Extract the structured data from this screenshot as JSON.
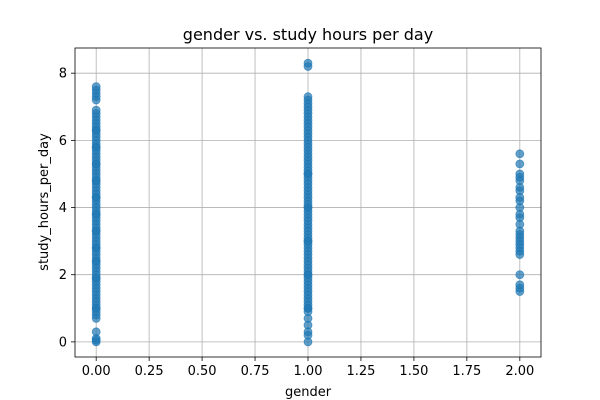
{
  "chart_data": {
    "type": "scatter",
    "title": "gender vs. study hours per day",
    "xlabel": "gender",
    "ylabel": "study_hours_per_day",
    "xlim": [
      -0.1,
      2.1
    ],
    "ylim": [
      -0.45,
      8.75
    ],
    "xticks": [
      0.0,
      0.25,
      0.5,
      0.75,
      1.0,
      1.25,
      1.5,
      1.75,
      2.0
    ],
    "xtick_labels": [
      "0.00",
      "0.25",
      "0.50",
      "0.75",
      "1.00",
      "1.25",
      "1.50",
      "1.75",
      "2.00"
    ],
    "yticks": [
      0,
      2,
      4,
      6,
      8
    ],
    "ytick_labels": [
      "0",
      "2",
      "4",
      "6",
      "8"
    ],
    "grid": true,
    "series": [
      {
        "color": "#1f77b4",
        "x": [
          0,
          0,
          0,
          0,
          0,
          0,
          0,
          0,
          0,
          0,
          0,
          0,
          0,
          0,
          0,
          0,
          0,
          0,
          0,
          0,
          0,
          0,
          0,
          0,
          0,
          0,
          0,
          0,
          0,
          0,
          0,
          0,
          0,
          0,
          0,
          0,
          0,
          0,
          0,
          0,
          0,
          0,
          0,
          0,
          0,
          0,
          0,
          0,
          0,
          0,
          0,
          0,
          0,
          0,
          0,
          0,
          0,
          0,
          0,
          0,
          0,
          0,
          0,
          0,
          0,
          0,
          0,
          0,
          0,
          0,
          0,
          0,
          0,
          0,
          0,
          0,
          0,
          0,
          0,
          0,
          0,
          0,
          0,
          1,
          1,
          1,
          1,
          1,
          1,
          1,
          1,
          1,
          1,
          1,
          1,
          1,
          1,
          1,
          1,
          1,
          1,
          1,
          1,
          1,
          1,
          1,
          1,
          1,
          1,
          1,
          1,
          1,
          1,
          1,
          1,
          1,
          1,
          1,
          1,
          1,
          1,
          1,
          1,
          1,
          1,
          1,
          1,
          1,
          1,
          1,
          1,
          1,
          1,
          1,
          1,
          1,
          1,
          1,
          1,
          1,
          1,
          1,
          1,
          1,
          1,
          1,
          1,
          1,
          1,
          1,
          1,
          1,
          1,
          1,
          1,
          1,
          1,
          1,
          1,
          1,
          2,
          2,
          2,
          2,
          2,
          2,
          2,
          2,
          2,
          2,
          2,
          2,
          2,
          2,
          2,
          2,
          2,
          2,
          2,
          2,
          2,
          2,
          2,
          2,
          2
        ],
        "y": [
          0.0,
          0.05,
          0.1,
          0.3,
          0.7,
          0.8,
          0.9,
          1.0,
          1.1,
          1.2,
          1.3,
          1.4,
          1.5,
          1.6,
          1.7,
          1.8,
          1.9,
          2.0,
          2.1,
          2.2,
          2.3,
          2.4,
          2.5,
          2.6,
          2.7,
          2.8,
          2.9,
          3.0,
          3.1,
          3.2,
          3.3,
          3.4,
          3.5,
          3.6,
          3.7,
          3.8,
          3.9,
          4.0,
          4.1,
          4.2,
          4.3,
          4.4,
          4.5,
          4.6,
          4.7,
          4.8,
          4.9,
          5.0,
          5.1,
          5.2,
          5.3,
          5.4,
          5.5,
          5.6,
          5.7,
          5.8,
          5.9,
          6.0,
          6.1,
          6.2,
          6.3,
          6.4,
          6.5,
          6.6,
          6.7,
          6.8,
          6.9,
          7.2,
          7.3,
          7.4,
          7.5,
          7.6,
          1.0,
          1.9,
          2.4,
          2.8,
          3.3,
          3.8,
          4.3,
          4.8,
          5.3,
          5.8,
          6.3,
          0.0,
          0.2,
          0.3,
          0.5,
          0.7,
          0.9,
          1.0,
          1.1,
          1.2,
          1.3,
          1.4,
          1.5,
          1.6,
          1.7,
          1.8,
          1.9,
          2.0,
          2.1,
          2.2,
          2.3,
          2.4,
          2.5,
          2.6,
          2.7,
          2.8,
          2.9,
          3.0,
          3.1,
          3.2,
          3.3,
          3.4,
          3.5,
          3.6,
          3.7,
          3.8,
          3.9,
          4.0,
          4.1,
          4.2,
          4.3,
          4.4,
          4.5,
          4.6,
          4.7,
          4.8,
          4.9,
          5.0,
          5.1,
          5.2,
          5.3,
          5.4,
          5.5,
          5.6,
          5.7,
          5.8,
          5.9,
          6.0,
          6.1,
          6.2,
          6.3,
          6.4,
          6.5,
          6.6,
          6.7,
          6.8,
          6.9,
          7.0,
          7.1,
          7.2,
          7.3,
          8.2,
          8.3,
          1.0,
          2.0,
          3.0,
          4.0,
          5.0,
          1.5,
          1.6,
          1.7,
          2.0,
          2.6,
          2.7,
          2.8,
          2.9,
          3.0,
          3.1,
          3.2,
          3.3,
          3.5,
          3.7,
          3.8,
          4.0,
          4.2,
          4.3,
          4.5,
          4.6,
          4.8,
          4.9,
          5.0,
          5.3,
          5.6
        ]
      }
    ]
  }
}
